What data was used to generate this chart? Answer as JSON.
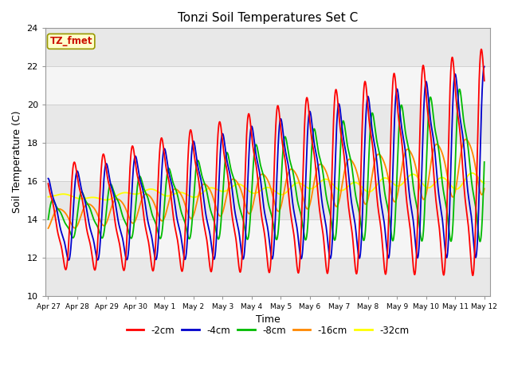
{
  "title": "Tonzi Soil Temperatures Set C",
  "xlabel": "Time",
  "ylabel": "Soil Temperature (C)",
  "ylim": [
    10,
    24
  ],
  "annotation": "TZ_fmet",
  "legend": [
    "-2cm",
    "-4cm",
    "-8cm",
    "-16cm",
    "-32cm"
  ],
  "colors": [
    "#ff0000",
    "#0000cc",
    "#00bb00",
    "#ff8800",
    "#ffff00"
  ],
  "xtick_labels": [
    "Apr 27",
    "Apr 28",
    "Apr 29",
    "Apr 30",
    "May 1",
    "May 2",
    "May 3",
    "May 4",
    "May 5",
    "May 6",
    "May 7",
    "May 8",
    "May 9",
    "May 10",
    "May 11",
    "May 12"
  ],
  "xtick_positions": [
    0,
    1,
    2,
    3,
    4,
    5,
    6,
    7,
    8,
    9,
    10,
    11,
    12,
    13,
    14,
    15
  ],
  "ytick_labels": [
    "10",
    "12",
    "14",
    "16",
    "18",
    "20",
    "22",
    "24"
  ],
  "ytick_positions": [
    10,
    12,
    14,
    16,
    18,
    20,
    22,
    24
  ],
  "figsize": [
    6.4,
    4.8
  ],
  "dpi": 100
}
